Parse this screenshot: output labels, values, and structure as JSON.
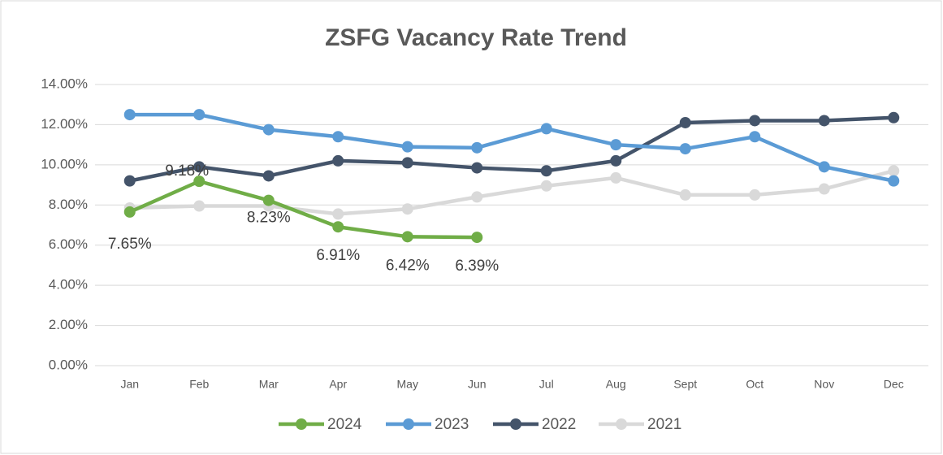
{
  "chart_data": {
    "type": "line",
    "title": "ZSFG Vacancy Rate Trend",
    "categories": [
      "Jan",
      "Feb",
      "Mar",
      "Apr",
      "May",
      "Jun",
      "Jul",
      "Aug",
      "Sept",
      "Oct",
      "Nov",
      "Dec"
    ],
    "series": [
      {
        "name": "2024",
        "color": "#70ad47",
        "values": [
          7.65,
          9.18,
          8.23,
          6.91,
          6.42,
          6.39,
          null,
          null,
          null,
          null,
          null,
          null
        ],
        "value_labels": [
          "7.65%",
          "9.18%",
          "8.23%",
          "6.91%",
          "6.42%",
          "6.39%",
          null,
          null,
          null,
          null,
          null,
          null
        ]
      },
      {
        "name": "2023",
        "color": "#5b9bd5",
        "values": [
          12.5,
          12.5,
          11.75,
          11.4,
          10.9,
          10.85,
          11.8,
          11.0,
          10.8,
          11.4,
          9.9,
          9.2
        ]
      },
      {
        "name": "2022",
        "color": "#44546a",
        "values": [
          9.2,
          9.9,
          9.45,
          10.2,
          10.1,
          9.85,
          9.7,
          10.2,
          12.1,
          12.2,
          12.2,
          12.35
        ]
      },
      {
        "name": "2021",
        "color": "#d9d9d9",
        "values": [
          7.85,
          7.95,
          7.95,
          7.55,
          7.8,
          8.4,
          8.95,
          9.35,
          8.5,
          8.5,
          8.8,
          9.7
        ]
      }
    ],
    "ylim": [
      0,
      14
    ],
    "yticks": [
      {
        "value": 0,
        "label": "0.00%"
      },
      {
        "value": 2,
        "label": "2.00%"
      },
      {
        "value": 4,
        "label": "4.00%"
      },
      {
        "value": 6,
        "label": "6.00%"
      },
      {
        "value": 8,
        "label": "8.00%"
      },
      {
        "value": 10,
        "label": "10.00%"
      },
      {
        "value": 12,
        "label": "12.00%"
      },
      {
        "value": 14,
        "label": "14.00%"
      }
    ],
    "grid": true
  }
}
